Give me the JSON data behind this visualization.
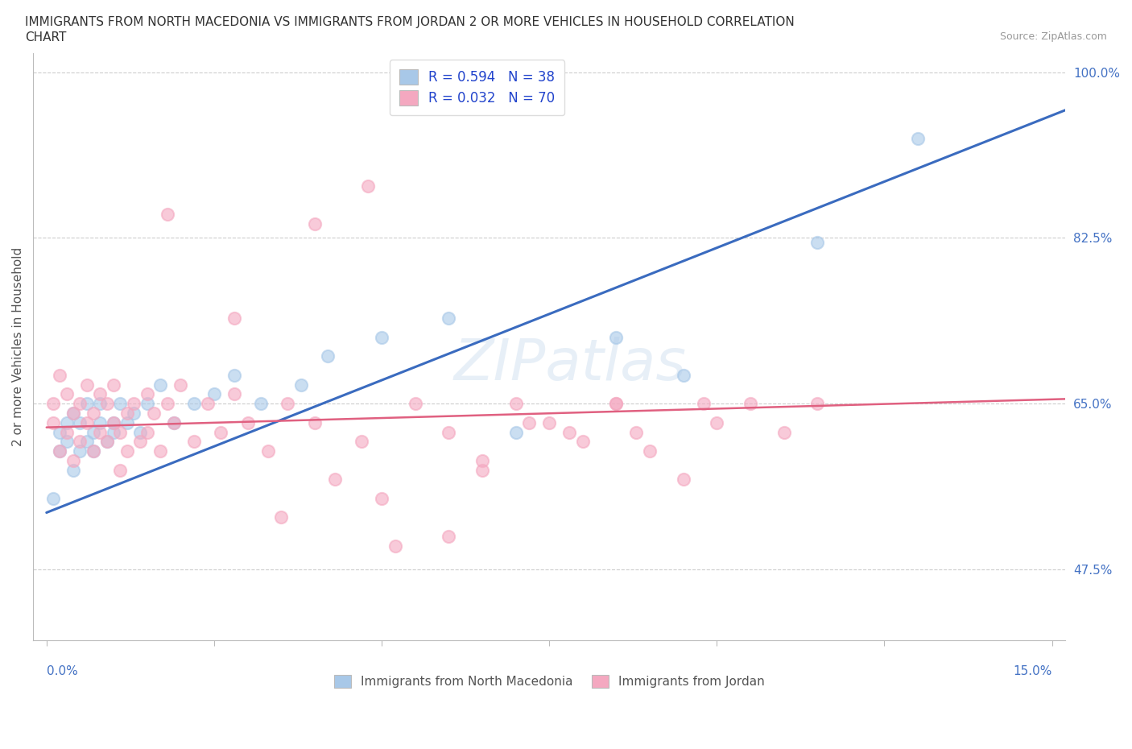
{
  "title_line1": "IMMIGRANTS FROM NORTH MACEDONIA VS IMMIGRANTS FROM JORDAN 2 OR MORE VEHICLES IN HOUSEHOLD CORRELATION",
  "title_line2": "CHART",
  "source": "Source: ZipAtlas.com",
  "ylabel": "2 or more Vehicles in Household",
  "xlim": [
    -0.002,
    0.152
  ],
  "ylim": [
    0.4,
    1.02
  ],
  "ytick_positions": [
    0.475,
    0.65,
    0.825,
    1.0
  ],
  "ytick_labels": [
    "47.5%",
    "65.0%",
    "82.5%",
    "100.0%"
  ],
  "xtick_positions": [
    0.0,
    0.025,
    0.05,
    0.075,
    0.1,
    0.125,
    0.15
  ],
  "r_macedonia": 0.594,
  "n_macedonia": 38,
  "r_jordan": 0.032,
  "n_jordan": 70,
  "color_macedonia": "#a8c8e8",
  "color_jordan": "#f4a8c0",
  "trendline_macedonia_color": "#3a6bbf",
  "trendline_jordan_color": "#e06080",
  "legend_r_color": "#2244cc",
  "watermark": "ZIPatlas",
  "macedonia_x": [
    0.001,
    0.002,
    0.002,
    0.003,
    0.003,
    0.004,
    0.004,
    0.005,
    0.005,
    0.006,
    0.006,
    0.007,
    0.007,
    0.008,
    0.008,
    0.009,
    0.01,
    0.01,
    0.011,
    0.012,
    0.013,
    0.014,
    0.015,
    0.017,
    0.019,
    0.022,
    0.025,
    0.028,
    0.032,
    0.038,
    0.042,
    0.05,
    0.06,
    0.07,
    0.085,
    0.095,
    0.115,
    0.13
  ],
  "macedonia_y": [
    0.55,
    0.62,
    0.6,
    0.63,
    0.61,
    0.58,
    0.64,
    0.6,
    0.63,
    0.61,
    0.65,
    0.62,
    0.6,
    0.63,
    0.65,
    0.61,
    0.63,
    0.62,
    0.65,
    0.63,
    0.64,
    0.62,
    0.65,
    0.67,
    0.63,
    0.65,
    0.66,
    0.68,
    0.65,
    0.67,
    0.7,
    0.72,
    0.74,
    0.62,
    0.72,
    0.68,
    0.82,
    0.93
  ],
  "jordan_x": [
    0.001,
    0.001,
    0.002,
    0.002,
    0.003,
    0.003,
    0.004,
    0.004,
    0.005,
    0.005,
    0.006,
    0.006,
    0.007,
    0.007,
    0.008,
    0.008,
    0.009,
    0.009,
    0.01,
    0.01,
    0.011,
    0.011,
    0.012,
    0.012,
    0.013,
    0.014,
    0.015,
    0.015,
    0.016,
    0.017,
    0.018,
    0.019,
    0.02,
    0.022,
    0.024,
    0.026,
    0.028,
    0.03,
    0.033,
    0.036,
    0.04,
    0.043,
    0.047,
    0.05,
    0.055,
    0.06,
    0.065,
    0.07,
    0.075,
    0.08,
    0.085,
    0.09,
    0.095,
    0.1,
    0.105,
    0.11,
    0.04,
    0.06,
    0.048,
    0.052,
    0.028,
    0.035,
    0.018,
    0.085,
    0.072,
    0.065,
    0.098,
    0.115,
    0.078,
    0.088
  ],
  "jordan_y": [
    0.63,
    0.65,
    0.6,
    0.68,
    0.62,
    0.66,
    0.59,
    0.64,
    0.61,
    0.65,
    0.63,
    0.67,
    0.6,
    0.64,
    0.62,
    0.66,
    0.61,
    0.65,
    0.63,
    0.67,
    0.62,
    0.58,
    0.64,
    0.6,
    0.65,
    0.61,
    0.66,
    0.62,
    0.64,
    0.6,
    0.65,
    0.63,
    0.67,
    0.61,
    0.65,
    0.62,
    0.66,
    0.63,
    0.6,
    0.65,
    0.63,
    0.57,
    0.61,
    0.55,
    0.65,
    0.62,
    0.59,
    0.65,
    0.63,
    0.61,
    0.65,
    0.6,
    0.57,
    0.63,
    0.65,
    0.62,
    0.84,
    0.51,
    0.88,
    0.5,
    0.74,
    0.53,
    0.85,
    0.65,
    0.63,
    0.58,
    0.65,
    0.65,
    0.62,
    0.62
  ],
  "mac_trend_x": [
    0.0,
    0.152
  ],
  "mac_trend_y": [
    0.535,
    0.96
  ],
  "jor_trend_x": [
    0.0,
    0.152
  ],
  "jor_trend_y": [
    0.625,
    0.655
  ]
}
